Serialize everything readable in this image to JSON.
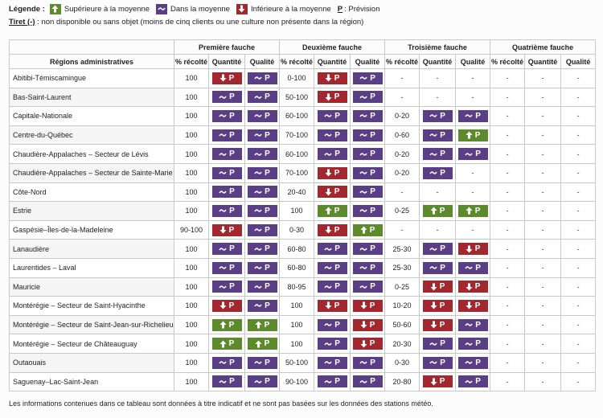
{
  "legend": {
    "title": "Légende :",
    "items": [
      {
        "type": "up",
        "icon": "arrow-up-icon",
        "label": "Supérieure à la moyenne"
      },
      {
        "type": "avg",
        "icon": "tilde-icon",
        "label": "Dans la moyenne"
      },
      {
        "type": "down",
        "icon": "arrow-down-icon",
        "label": "Inférieure à la moyenne"
      }
    ],
    "prevision_letter": "P",
    "prevision_label": " : Prévision"
  },
  "tiret": {
    "label": "Tiret (-)",
    "text": " : non disponible ou sans objet (moins de cinq clients ou une culture non présente dans la région)"
  },
  "table": {
    "region_header": "Régions administratives",
    "groups": [
      "Première fauche",
      "Deuxième fauche",
      "Troisième fauche",
      "Quatrième fauche"
    ],
    "subheaders": [
      "% récolté",
      "Quantité",
      "Qualité"
    ],
    "prevision_letter": "P",
    "colors": {
      "up": "#5e8a2e",
      "avg": "#5a3f86",
      "down": "#a3272e"
    },
    "rows": [
      {
        "region": "Abitibi-Témiscamingue",
        "f": [
          [
            "100",
            "down",
            "avg"
          ],
          [
            "0-100",
            "down",
            "avg"
          ],
          [
            "-",
            "-",
            "-"
          ],
          [
            "-",
            "-",
            "-"
          ]
        ]
      },
      {
        "region": "Bas-Saint-Laurent",
        "f": [
          [
            "100",
            "avg",
            "avg"
          ],
          [
            "50-100",
            "down",
            "avg"
          ],
          [
            "-",
            "-",
            "-"
          ],
          [
            "-",
            "-",
            "-"
          ]
        ]
      },
      {
        "region": "Capitale-Nationale",
        "f": [
          [
            "100",
            "avg",
            "avg"
          ],
          [
            "60-100",
            "avg",
            "avg"
          ],
          [
            "0-20",
            "avg",
            "avg"
          ],
          [
            "-",
            "-",
            "-"
          ]
        ]
      },
      {
        "region": "Centre-du-Québec",
        "f": [
          [
            "100",
            "avg",
            "avg"
          ],
          [
            "70-100",
            "avg",
            "avg"
          ],
          [
            "0-60",
            "avg",
            "up"
          ],
          [
            "-",
            "-",
            "-"
          ]
        ]
      },
      {
        "region": "Chaudière-Appalaches – Secteur de Lévis",
        "f": [
          [
            "100",
            "avg",
            "avg"
          ],
          [
            "60-100",
            "avg",
            "avg"
          ],
          [
            "0-20",
            "avg",
            "avg"
          ],
          [
            "-",
            "-",
            "-"
          ]
        ]
      },
      {
        "region": "Chaudière-Appalaches – Secteur de Sainte-Marie",
        "f": [
          [
            "100",
            "avg",
            "avg"
          ],
          [
            "70-100",
            "down",
            "avg"
          ],
          [
            "0-20",
            "avg",
            "-"
          ],
          [
            "-",
            "-",
            "-"
          ]
        ]
      },
      {
        "region": "Côte-Nord",
        "f": [
          [
            "100",
            "avg",
            "avg"
          ],
          [
            "20-40",
            "down",
            "avg"
          ],
          [
            "-",
            "-",
            "-"
          ],
          [
            "-",
            "-",
            "-"
          ]
        ]
      },
      {
        "region": "Estrie",
        "f": [
          [
            "100",
            "avg",
            "avg"
          ],
          [
            "100",
            "up",
            "avg"
          ],
          [
            "0-25",
            "up",
            "up"
          ],
          [
            "-",
            "-",
            "-"
          ]
        ]
      },
      {
        "region": "Gaspésie–Îles-de-la-Madeleine",
        "f": [
          [
            "90-100",
            "down",
            "avg"
          ],
          [
            "0-30",
            "down",
            "up"
          ],
          [
            "-",
            "-",
            "-"
          ],
          [
            "-",
            "-",
            "-"
          ]
        ]
      },
      {
        "region": "Lanaudière",
        "f": [
          [
            "100",
            "avg",
            "avg"
          ],
          [
            "60-80",
            "avg",
            "avg"
          ],
          [
            "25-30",
            "avg",
            "down"
          ],
          [
            "-",
            "-",
            "-"
          ]
        ]
      },
      {
        "region": "Laurentides – Laval",
        "f": [
          [
            "100",
            "avg",
            "avg"
          ],
          [
            "60-80",
            "avg",
            "avg"
          ],
          [
            "25-30",
            "avg",
            "avg"
          ],
          [
            "-",
            "-",
            "-"
          ]
        ]
      },
      {
        "region": "Mauricie",
        "f": [
          [
            "100",
            "avg",
            "avg"
          ],
          [
            "80-95",
            "avg",
            "avg"
          ],
          [
            "0-25",
            "down",
            "down"
          ],
          [
            "-",
            "-",
            "-"
          ]
        ]
      },
      {
        "region": "Montérégie – Secteur de Saint-Hyacinthe",
        "f": [
          [
            "100",
            "down",
            "avg"
          ],
          [
            "100",
            "down",
            "down"
          ],
          [
            "10-20",
            "down",
            "down"
          ],
          [
            "-",
            "-",
            "-"
          ]
        ]
      },
      {
        "region": "Montérégie – Secteur de Saint-Jean-sur-Richelieu",
        "f": [
          [
            "100",
            "up",
            "up"
          ],
          [
            "100",
            "avg",
            "down"
          ],
          [
            "50-60",
            "down",
            "avg"
          ],
          [
            "-",
            "-",
            "-"
          ]
        ]
      },
      {
        "region": "Montérégie – Secteur de Châteauguay",
        "f": [
          [
            "100",
            "up",
            "up"
          ],
          [
            "100",
            "avg",
            "down"
          ],
          [
            "20-30",
            "avg",
            "avg"
          ],
          [
            "-",
            "-",
            "-"
          ]
        ]
      },
      {
        "region": "Outaouais",
        "f": [
          [
            "100",
            "avg",
            "avg"
          ],
          [
            "50-100",
            "avg",
            "avg"
          ],
          [
            "0-30",
            "avg",
            "avg"
          ],
          [
            "-",
            "-",
            "-"
          ]
        ]
      },
      {
        "region": "Saguenay–Lac-Saint-Jean",
        "f": [
          [
            "100",
            "avg",
            "avg"
          ],
          [
            "90-100",
            "avg",
            "avg"
          ],
          [
            "20-80",
            "down",
            "avg"
          ],
          [
            "-",
            "-",
            "-"
          ]
        ]
      }
    ]
  },
  "footer": "Les informations contenues dans ce tableau sont données à titre indicatif et ne sont pas basées sur les données des stations météo."
}
